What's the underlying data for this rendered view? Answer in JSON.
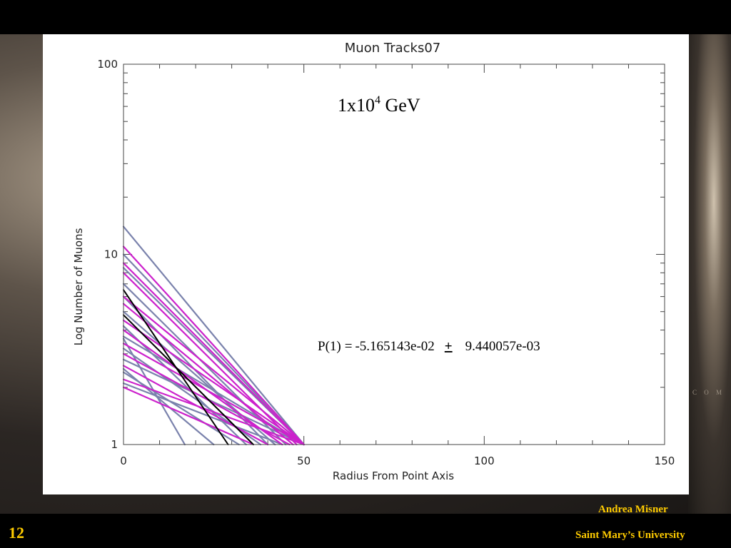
{
  "slide": {
    "number": "12",
    "author": "Andrea Misner",
    "university": "Saint Mary’s University",
    "watermark": "C O M"
  },
  "colors": {
    "text_accent": "#ffcc00",
    "series_gray_blue": "#7a82ac",
    "series_magenta": "#cc22cc",
    "series_black": "#000000"
  },
  "chart_data": {
    "type": "line",
    "title": "Muon Tracks07",
    "xlabel": "Radius From Point Axis",
    "ylabel": "Log Number of Muons",
    "xlim": [
      0,
      150
    ],
    "ylim": [
      1,
      100
    ],
    "yscale": "log",
    "xticks": [
      "0",
      "50",
      "100",
      "150"
    ],
    "yticks": [
      "1",
      "10",
      "100"
    ],
    "grid": false,
    "annotations": {
      "energy_base": "1x10",
      "energy_exp": "4",
      "energy_unit": " GeV",
      "fit_label": "P(1)",
      "fit_eq": "=",
      "fit_value": "-5.165143e-02",
      "fit_pm": "+",
      "fit_error": "9.440057e-03"
    },
    "series": [
      {
        "color": "gray",
        "y0": 14,
        "x_end": 50
      },
      {
        "color": "magenta",
        "y0": 11,
        "x_end": 50
      },
      {
        "color": "gray",
        "y0": 10,
        "x_end": 50
      },
      {
        "color": "magenta",
        "y0": 9,
        "x_end": 50
      },
      {
        "color": "gray",
        "y0": 8.5,
        "x_end": 50
      },
      {
        "color": "magenta",
        "y0": 8,
        "x_end": 48
      },
      {
        "color": "gray",
        "y0": 7,
        "x_end": 45
      },
      {
        "color": "black",
        "y0": 6.5,
        "x_end": 29
      },
      {
        "color": "magenta",
        "y0": 6,
        "x_end": 50
      },
      {
        "color": "gray",
        "y0": 6,
        "x_end": 40
      },
      {
        "color": "magenta",
        "y0": 5.5,
        "x_end": 47
      },
      {
        "color": "black",
        "y0": 4.8,
        "x_end": 36
      },
      {
        "color": "gray",
        "y0": 5,
        "x_end": 42
      },
      {
        "color": "magenta",
        "y0": 4.5,
        "x_end": 50
      },
      {
        "color": "gray",
        "y0": 4.2,
        "x_end": 34
      },
      {
        "color": "magenta",
        "y0": 4,
        "x_end": 44
      },
      {
        "color": "gray",
        "y0": 3.7,
        "x_end": 50
      },
      {
        "color": "magenta",
        "y0": 3.4,
        "x_end": 50
      },
      {
        "color": "gray",
        "y0": 3.2,
        "x_end": 38
      },
      {
        "color": "magenta",
        "y0": 3,
        "x_end": 46
      },
      {
        "color": "gray",
        "y0": 2.8,
        "x_end": 50
      },
      {
        "color": "magenta",
        "y0": 2.6,
        "x_end": 40
      },
      {
        "color": "gray",
        "y0": 2.4,
        "x_end": 32
      },
      {
        "color": "magenta",
        "y0": 2.2,
        "x_end": 50
      },
      {
        "color": "gray",
        "y0": 2.1,
        "x_end": 44
      },
      {
        "color": "magenta",
        "y0": 2,
        "x_end": 36
      },
      {
        "color": "gray",
        "y0": 3.6,
        "x_end": 17
      },
      {
        "color": "gray",
        "y0": 2.5,
        "x_end": 25
      }
    ]
  }
}
